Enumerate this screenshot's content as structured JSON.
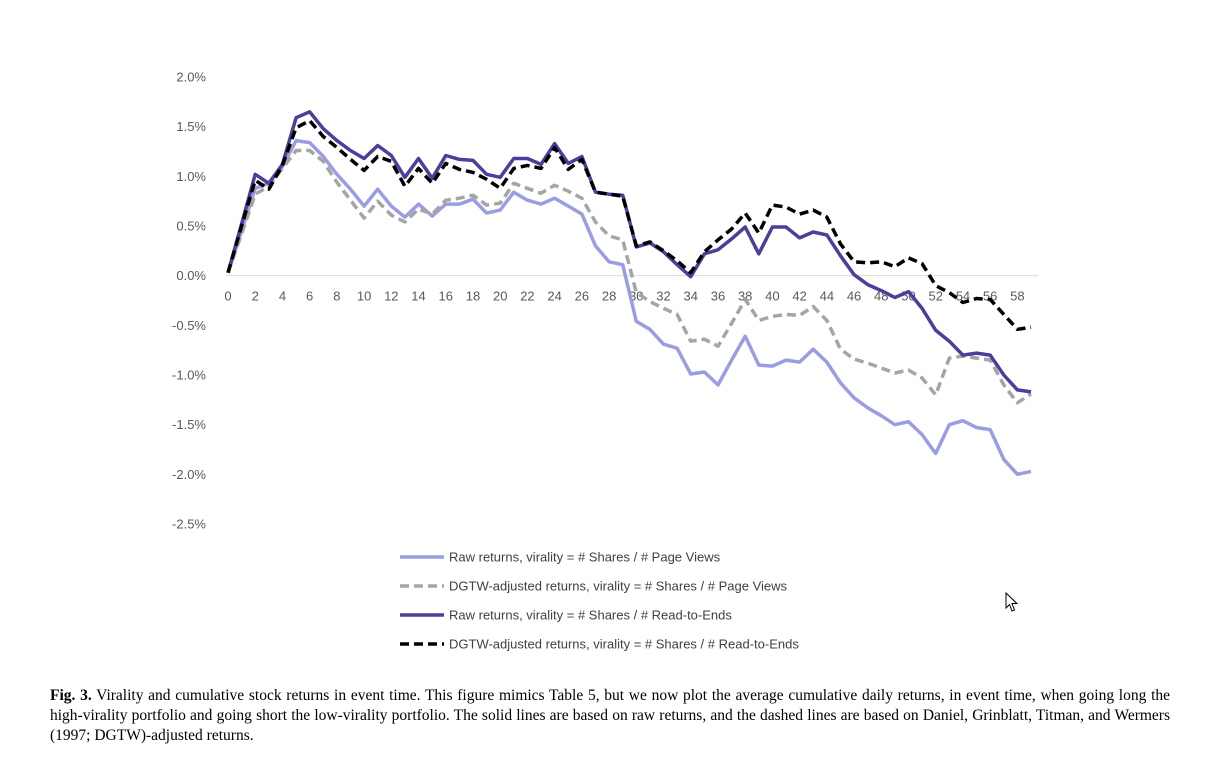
{
  "chart_data": {
    "type": "line",
    "title": "",
    "xlabel": "",
    "ylabel": "",
    "ylim": [
      -0.025,
      0.02
    ],
    "xlim": [
      0,
      59
    ],
    "y_ticks": [
      "2.0%",
      "1.5%",
      "1.0%",
      "0.5%",
      "0.0%",
      "-0.5%",
      "-1.0%",
      "-1.5%",
      "-2.0%",
      "-2.5%"
    ],
    "x_ticks": [
      "0",
      "2",
      "4",
      "6",
      "8",
      "10",
      "12",
      "14",
      "16",
      "18",
      "20",
      "22",
      "24",
      "26",
      "28",
      "30",
      "32",
      "34",
      "36",
      "38",
      "40",
      "42",
      "44",
      "46",
      "48",
      "50",
      "52",
      "54",
      "56",
      "58"
    ],
    "grid": false,
    "legend_position": "bottom",
    "x": [
      0,
      1,
      2,
      3,
      4,
      5,
      6,
      7,
      8,
      9,
      10,
      11,
      12,
      13,
      14,
      15,
      16,
      17,
      18,
      19,
      20,
      21,
      22,
      23,
      24,
      25,
      26,
      27,
      28,
      29,
      30,
      31,
      32,
      33,
      34,
      35,
      36,
      37,
      38,
      39,
      40,
      41,
      42,
      43,
      44,
      45,
      46,
      47,
      48,
      49,
      50,
      51,
      52,
      53,
      54,
      55,
      56,
      57,
      58,
      59
    ],
    "series": [
      {
        "name": "Raw returns, virality = # Shares / # Page Views",
        "color": "#9B9DE3",
        "dash": "solid",
        "values": [
          0.0003,
          0.0045,
          0.0088,
          0.0093,
          0.011,
          0.0136,
          0.0134,
          0.012,
          0.0102,
          0.0087,
          0.007,
          0.0087,
          0.007,
          0.0059,
          0.0072,
          0.006,
          0.0072,
          0.0072,
          0.0077,
          0.0063,
          0.0066,
          0.0084,
          0.0076,
          0.0072,
          0.0078,
          0.007,
          0.0062,
          0.003,
          0.0014,
          0.0011,
          -0.0046,
          -0.0054,
          -0.0069,
          -0.0073,
          -0.0099,
          -0.0097,
          -0.011,
          -0.0085,
          -0.0061,
          -0.009,
          -0.0091,
          -0.0085,
          -0.0087,
          -0.0074,
          -0.0087,
          -0.0108,
          -0.0123,
          -0.0133,
          -0.0141,
          -0.015,
          -0.0147,
          -0.016,
          -0.0179,
          -0.015,
          -0.0146,
          -0.0153,
          -0.0155,
          -0.0185,
          -0.02,
          -0.0197
        ]
      },
      {
        "name": "DGTW-adjusted returns, virality = # Shares / # Page Views",
        "color": "#A5A5A5",
        "dash": "dashed",
        "values": [
          0.0003,
          0.0042,
          0.0082,
          0.009,
          0.0108,
          0.0126,
          0.0126,
          0.0115,
          0.0094,
          0.0076,
          0.0058,
          0.0075,
          0.0061,
          0.0054,
          0.0067,
          0.0062,
          0.0076,
          0.0078,
          0.0081,
          0.0071,
          0.0073,
          0.0093,
          0.0088,
          0.0083,
          0.0091,
          0.0085,
          0.0078,
          0.0054,
          0.004,
          0.0036,
          -0.0017,
          -0.0026,
          -0.0033,
          -0.0039,
          -0.0066,
          -0.0064,
          -0.0071,
          -0.0048,
          -0.0024,
          -0.0045,
          -0.0041,
          -0.0039,
          -0.004,
          -0.0031,
          -0.0045,
          -0.0074,
          -0.0084,
          -0.0088,
          -0.0093,
          -0.0098,
          -0.0095,
          -0.0103,
          -0.012,
          -0.0083,
          -0.0081,
          -0.0083,
          -0.0085,
          -0.011,
          -0.0128,
          -0.0119
        ]
      },
      {
        "name": "Raw returns, virality = # Shares / # Read-to-Ends",
        "color": "#4B3F9A",
        "dash": "solid",
        "values": [
          0.0003,
          0.0052,
          0.0102,
          0.0093,
          0.0112,
          0.0159,
          0.0165,
          0.0148,
          0.0136,
          0.0126,
          0.0118,
          0.0131,
          0.0121,
          0.0099,
          0.0118,
          0.0098,
          0.0121,
          0.0117,
          0.0116,
          0.0102,
          0.0099,
          0.0118,
          0.0118,
          0.0112,
          0.0133,
          0.0113,
          0.012,
          0.0084,
          0.0082,
          0.0081,
          0.0029,
          0.0033,
          0.0024,
          0.0011,
          -0.0001,
          0.0022,
          0.0026,
          0.0037,
          0.0049,
          0.0022,
          0.0049,
          0.0049,
          0.0038,
          0.0044,
          0.0041,
          0.002,
          0.0001,
          -0.0009,
          -0.0015,
          -0.0022,
          -0.0016,
          -0.0033,
          -0.0055,
          -0.0066,
          -0.008,
          -0.0078,
          -0.008,
          -0.01,
          -0.0115,
          -0.0117
        ]
      },
      {
        "name": "DGTW-adjusted returns, virality = # Shares / # Read-to-Ends",
        "color": "#000000",
        "dash": "dashed",
        "values": [
          0.0003,
          0.005,
          0.0096,
          0.0087,
          0.0111,
          0.0149,
          0.0156,
          0.014,
          0.0129,
          0.0117,
          0.0106,
          0.012,
          0.0115,
          0.009,
          0.0108,
          0.0093,
          0.0113,
          0.0107,
          0.0104,
          0.0097,
          0.0088,
          0.0108,
          0.0111,
          0.0108,
          0.0129,
          0.0107,
          0.0117,
          0.0084,
          0.0082,
          0.008,
          0.003,
          0.0034,
          0.0025,
          0.0015,
          0.0003,
          0.0024,
          0.0036,
          0.0047,
          0.0063,
          0.0043,
          0.0071,
          0.0069,
          0.0062,
          0.0066,
          0.0059,
          0.0032,
          0.0014,
          0.0013,
          0.0014,
          0.0009,
          0.0018,
          0.0012,
          -0.001,
          -0.0017,
          -0.0027,
          -0.0023,
          -0.0024,
          -0.0039,
          -0.0054,
          -0.0052
        ]
      }
    ]
  },
  "caption": {
    "label": "Fig. 3.",
    "text": " Virality and cumulative stock returns in event time. This figure mimics Table 5, but we now plot the average cumulative daily returns, in event time, when going long the high-virality portfolio and going short the low-virality portfolio. The solid lines are based on raw returns, and the dashed lines are based on Daniel, Grinblatt, Titman, and Wermers (1997; DGTW)-adjusted returns."
  }
}
